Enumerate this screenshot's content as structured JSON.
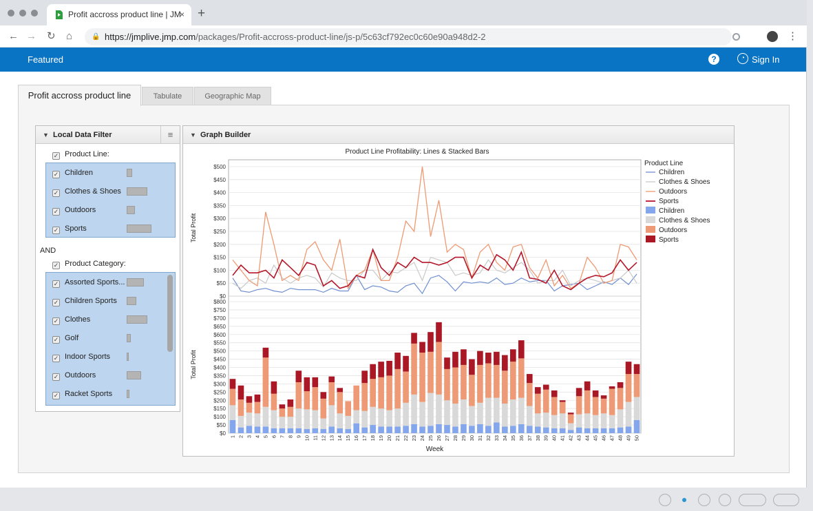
{
  "browser": {
    "tab_title": "Profit accross product line | JM",
    "tab_close": "×",
    "new_tab": "+",
    "url_host": "https://jmplive.jmp.com",
    "url_path": "/packages/Profit-accross-product-line/js-p/5c63cf792ec0c60e90a948d2-2"
  },
  "app": {
    "featured": "Featured",
    "help": "?",
    "sign_in": "Sign In"
  },
  "tabs": [
    "Profit accross product line",
    "Tabulate",
    "Geographic Map"
  ],
  "filter": {
    "title": "Local Data Filter",
    "group1_label": "Product Line:",
    "group1_items": [
      {
        "label": "Children",
        "bar": 0.15
      },
      {
        "label": "Clothes & Shoes",
        "bar": 0.55
      },
      {
        "label": "Outdoors",
        "bar": 0.22
      },
      {
        "label": "Sports",
        "bar": 0.65
      }
    ],
    "and_label": "AND",
    "group2_label": "Product Category:",
    "group2_items": [
      {
        "label": "Assorted Sports...",
        "bar": 0.45
      },
      {
        "label": "Children Sports",
        "bar": 0.25
      },
      {
        "label": "Clothes",
        "bar": 0.55
      },
      {
        "label": "Golf",
        "bar": 0.1
      },
      {
        "label": "Indoor Sports",
        "bar": 0.05
      },
      {
        "label": "Outdoors",
        "bar": 0.38
      },
      {
        "label": "Racket Sports",
        "bar": 0.08
      }
    ]
  },
  "graph": {
    "title": "Graph Builder"
  },
  "colors": {
    "children_line": "#6f8fd1",
    "clothes_line": "#c9c9c9",
    "outdoors_line": "#ee9a72",
    "sports_line": "#b4172a",
    "children_bar": "#84a6ec",
    "clothes_bar": "#d9d9d9",
    "outdoors_bar": "#ee9a76",
    "sports_bar": "#aa1826"
  },
  "chart_data": {
    "type": "line",
    "title": "Product Line Profitability: Lines & Stacked Bars",
    "xlabel": "Week",
    "ylabel": "Total Profit",
    "top_ylim": [
      0,
      500
    ],
    "top_yticks": [
      "$0",
      "$50",
      "$100",
      "$150",
      "$200",
      "$250",
      "$300",
      "$350",
      "$400",
      "$450",
      "$500"
    ],
    "bottom_ylim": [
      0,
      800
    ],
    "bottom_yticks": [
      "$0",
      "$50",
      "$100",
      "$150",
      "$200",
      "$250",
      "$300",
      "$350",
      "$400",
      "$450",
      "$500",
      "$550",
      "$600",
      "$650",
      "$700",
      "$750",
      "$800"
    ],
    "legend_title": "Product Line",
    "legend_lines": [
      "Children",
      "Clothes & Shoes",
      "Outdoors",
      "Sports"
    ],
    "legend_bars": [
      "Children",
      "Clothes & Shoes",
      "Outdoors",
      "Sports"
    ],
    "grid": true,
    "x": [
      1,
      2,
      3,
      4,
      5,
      6,
      7,
      8,
      9,
      10,
      11,
      12,
      13,
      14,
      15,
      16,
      17,
      18,
      19,
      20,
      21,
      22,
      23,
      24,
      25,
      26,
      27,
      28,
      29,
      30,
      31,
      32,
      33,
      34,
      35,
      36,
      37,
      38,
      39,
      40,
      41,
      42,
      43,
      44,
      45,
      46,
      47,
      48,
      49,
      50
    ],
    "series": [
      {
        "name": "Children",
        "values": [
          70,
          20,
          15,
          25,
          30,
          20,
          15,
          30,
          25,
          25,
          25,
          15,
          30,
          20,
          20,
          80,
          25,
          40,
          35,
          20,
          15,
          40,
          50,
          10,
          70,
          80,
          55,
          20,
          55,
          50,
          55,
          50,
          70,
          45,
          50,
          70,
          55,
          60,
          60,
          20,
          40,
          45,
          50,
          25,
          40,
          55,
          45,
          70,
          45,
          85
        ]
      },
      {
        "name": "Clothes & Shoes",
        "values": [
          50,
          30,
          60,
          70,
          50,
          120,
          70,
          50,
          70,
          80,
          70,
          35,
          90,
          70,
          60,
          60,
          100,
          100,
          60,
          95,
          90,
          110,
          130,
          60,
          150,
          140,
          130,
          80,
          90,
          80,
          90,
          140,
          100,
          90,
          110,
          130,
          100,
          50,
          60,
          60,
          100,
          40,
          60,
          70,
          60,
          50,
          60,
          70,
          100,
          50
        ]
      },
      {
        "name": "Outdoors",
        "values": [
          140,
          100,
          60,
          40,
          325,
          200,
          60,
          80,
          60,
          180,
          210,
          140,
          100,
          220,
          30,
          80,
          100,
          180,
          60,
          60,
          150,
          290,
          250,
          500,
          230,
          370,
          170,
          200,
          180,
          70,
          170,
          200,
          130,
          100,
          190,
          200,
          110,
          70,
          140,
          40,
          80,
          30,
          50,
          150,
          110,
          50,
          60,
          200,
          190,
          140
        ]
      },
      {
        "name": "Sports",
        "values": [
          80,
          120,
          90,
          90,
          100,
          70,
          140,
          110,
          80,
          130,
          120,
          40,
          60,
          30,
          40,
          80,
          70,
          180,
          110,
          80,
          130,
          110,
          150,
          130,
          130,
          120,
          130,
          150,
          150,
          70,
          120,
          100,
          160,
          140,
          100,
          170,
          70,
          65,
          50,
          100,
          40,
          25,
          50,
          70,
          80,
          75,
          90,
          140,
          100,
          130
        ]
      }
    ],
    "stacked_bars": {
      "Children": [
        80,
        35,
        45,
        40,
        40,
        30,
        30,
        30,
        30,
        25,
        30,
        25,
        40,
        30,
        25,
        60,
        35,
        50,
        40,
        40,
        40,
        45,
        55,
        40,
        45,
        55,
        50,
        40,
        55,
        45,
        55,
        45,
        65,
        40,
        45,
        55,
        45,
        40,
        35,
        30,
        30,
        20,
        35,
        30,
        30,
        30,
        30,
        35,
        40,
        80
      ],
      "Clothes & Shoes": [
        90,
        70,
        80,
        80,
        120,
        110,
        70,
        70,
        120,
        120,
        110,
        65,
        130,
        90,
        80,
        80,
        100,
        110,
        110,
        100,
        110,
        140,
        180,
        150,
        200,
        180,
        150,
        140,
        150,
        120,
        130,
        170,
        150,
        140,
        160,
        160,
        120,
        80,
        90,
        80,
        90,
        40,
        80,
        90,
        80,
        90,
        80,
        110,
        150,
        140
      ],
      "Outdoors": [
        100,
        100,
        60,
        70,
        300,
        100,
        50,
        60,
        160,
        110,
        140,
        120,
        140,
        130,
        90,
        150,
        170,
        170,
        190,
        210,
        240,
        190,
        310,
        300,
        250,
        320,
        190,
        220,
        210,
        190,
        230,
        210,
        200,
        200,
        230,
        240,
        140,
        120,
        140,
        110,
        70,
        55,
        110,
        140,
        110,
        90,
        160,
        130,
        170,
        140
      ],
      "Sports": [
        60,
        85,
        40,
        45,
        60,
        75,
        25,
        45,
        70,
        85,
        60,
        40,
        35,
        25,
        0,
        0,
        75,
        90,
        95,
        90,
        100,
        95,
        65,
        65,
        120,
        120,
        70,
        95,
        95,
        95,
        85,
        65,
        80,
        95,
        75,
        110,
        55,
        40,
        30,
        40,
        10,
        10,
        50,
        55,
        40,
        20,
        15,
        35,
        75,
        60
      ]
    }
  }
}
